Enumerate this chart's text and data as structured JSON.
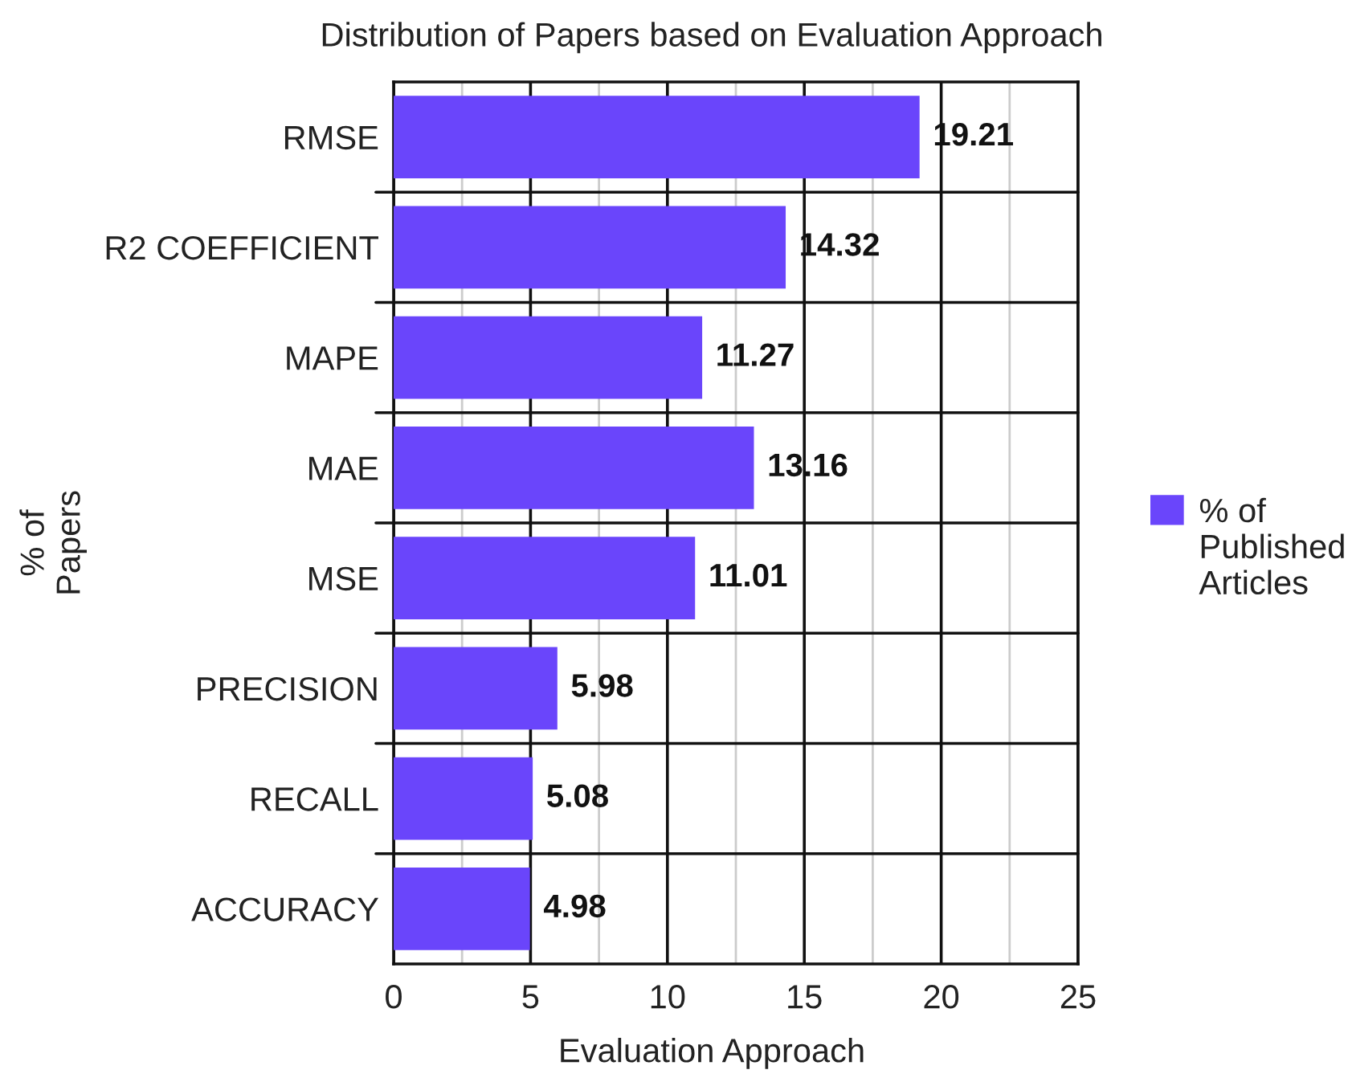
{
  "chart_data": {
    "type": "bar",
    "orientation": "horizontal",
    "title": "Distribution of Papers based on Evaluation Approach",
    "xlabel": "Evaluation Approach",
    "ylabel": "% of Papers",
    "categories": [
      "RMSE",
      "R2 COEFFICIENT",
      "MAPE",
      "MAE",
      "MSE",
      "PRECISION",
      "RECALL",
      "ACCURACY"
    ],
    "series": [
      {
        "name": "% of Published Articles",
        "color": "#6a45fb",
        "values": [
          19.21,
          14.32,
          11.27,
          13.16,
          11.01,
          5.98,
          5.08,
          4.98
        ]
      }
    ],
    "xlim": [
      0,
      25
    ],
    "xticks": [
      0,
      {
        "value": 2.5,
        "label": null
      },
      5,
      {
        "value": 7.5,
        "label": null
      },
      10,
      {
        "value": 12.5,
        "label": null
      },
      15,
      {
        "value": 17.5,
        "label": null
      },
      20,
      {
        "value": 22.5,
        "label": null
      },
      25
    ],
    "grid": true,
    "legend": "right",
    "data_labels": true
  }
}
